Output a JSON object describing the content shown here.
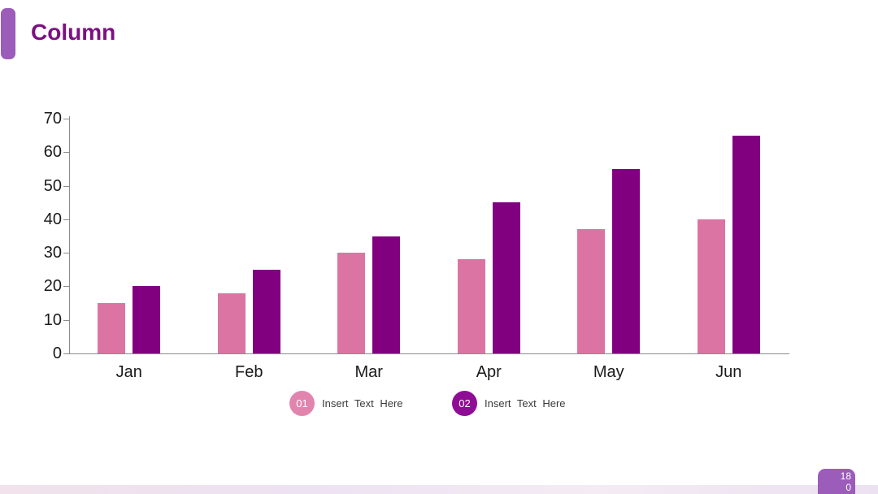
{
  "slide": {
    "title": "Column",
    "page_number": "180"
  },
  "chart_data": {
    "type": "bar",
    "title": "Column",
    "categories": [
      "Jan",
      "Feb",
      "Mar",
      "Apr",
      "May",
      "Jun"
    ],
    "series": [
      {
        "name": "01",
        "label": "Insert Text Here",
        "color": "#DB74A3",
        "values": [
          15,
          18,
          30,
          28,
          37,
          40
        ]
      },
      {
        "name": "02",
        "label": "Insert Text Here",
        "color": "#800080",
        "values": [
          20,
          25,
          35,
          45,
          55,
          65
        ]
      }
    ],
    "xlabel": "",
    "ylabel": "",
    "ylim": [
      0,
      70
    ],
    "yticks": [
      0,
      10,
      20,
      30,
      40,
      50,
      60,
      70
    ],
    "grid": false,
    "legend_position": "bottom"
  },
  "legend": {
    "items": [
      {
        "badge": "01",
        "label": "Insert Text Here",
        "color": "#E285AE"
      },
      {
        "badge": "02",
        "label": "Insert Text Here",
        "color": "#8F0D95"
      }
    ]
  },
  "colors": {
    "accent_tab": "#9B5CBA",
    "title_text": "#7B1182",
    "series1_bar": "#DB74A3",
    "series2_bar": "#800080",
    "axis_line": "#8C8C8C",
    "tick_text": "#1A1A1A",
    "footer_strip": "#EDE2F2",
    "page_badge": "#9B5CBA"
  }
}
